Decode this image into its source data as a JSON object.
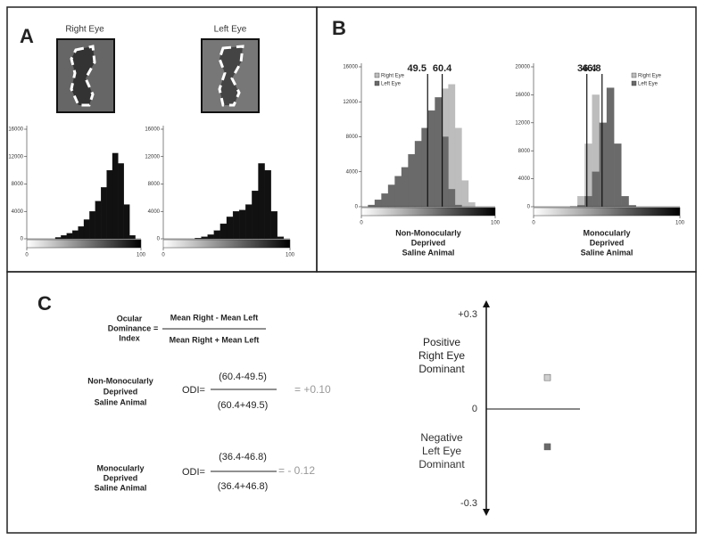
{
  "panel_a": {
    "label": "A",
    "images": [
      "Right Eye",
      "Left Eye"
    ],
    "charts": [
      {
        "type": "histogram",
        "color": "#111",
        "bins": [
          0,
          5,
          10,
          15,
          20,
          25,
          30,
          35,
          40,
          45,
          50,
          55,
          60,
          65,
          70,
          75,
          80,
          85,
          90,
          95,
          100
        ],
        "counts": [
          0,
          0,
          0,
          0,
          0,
          200,
          500,
          800,
          1200,
          1800,
          2800,
          4000,
          5500,
          7500,
          10000,
          12500,
          11000,
          5000,
          500,
          0
        ],
        "xlim": [
          0,
          100
        ],
        "xticks": [
          0,
          100
        ],
        "ylim": [
          0,
          16000
        ],
        "yticks": [
          0,
          4000,
          8000,
          12000,
          16000
        ]
      },
      {
        "type": "histogram",
        "color": "#111",
        "bins": [
          0,
          5,
          10,
          15,
          20,
          25,
          30,
          35,
          40,
          45,
          50,
          55,
          60,
          65,
          70,
          75,
          80,
          85,
          90,
          95,
          100
        ],
        "counts": [
          0,
          0,
          0,
          0,
          0,
          100,
          300,
          600,
          1200,
          2200,
          3200,
          4000,
          4200,
          5000,
          7000,
          11000,
          10000,
          4000,
          300,
          0
        ],
        "xlim": [
          0,
          100
        ],
        "xticks": [
          0,
          100
        ],
        "ylim": [
          0,
          16000
        ],
        "yticks": [
          0,
          4000,
          8000,
          12000,
          16000
        ]
      }
    ]
  },
  "panel_b": {
    "label": "B",
    "charts": [
      {
        "type": "histogram",
        "bins": [
          0,
          5,
          10,
          15,
          20,
          25,
          30,
          35,
          40,
          45,
          50,
          55,
          60,
          65,
          70,
          75,
          80,
          85,
          90,
          95,
          100
        ],
        "series": [
          {
            "name": "Right Eye",
            "color": "#bdbdbd",
            "mean": 60.4,
            "values": [
              0,
              0,
              0,
              0,
              100,
              300,
              700,
              1500,
              2500,
              4000,
              6500,
              10000,
              13500,
              14000,
              9000,
              3000,
              500,
              0,
              0,
              0
            ]
          },
          {
            "name": "Left Eye",
            "color": "#6a6a6a",
            "mean": 49.5,
            "values": [
              0,
              200,
              800,
              1500,
              2500,
              3500,
              4500,
              6000,
              7500,
              9000,
              11000,
              12500,
              8000,
              2000,
              200,
              0,
              0,
              0,
              0,
              0
            ]
          }
        ],
        "xlim": [
          0,
          100
        ],
        "xticks": [
          0,
          100
        ],
        "ylim": [
          0,
          16000
        ],
        "yticks": [
          0,
          4000,
          8000,
          12000,
          16000
        ],
        "xlabel": [
          "Non-Monocularly",
          "Deprived",
          "Saline Animal"
        ]
      },
      {
        "type": "histogram",
        "bins": [
          0,
          5,
          10,
          15,
          20,
          25,
          30,
          35,
          40,
          45,
          50,
          55,
          60,
          65,
          70,
          75,
          80,
          85,
          90,
          95,
          100
        ],
        "series": [
          {
            "name": "Right Eye",
            "color": "#bdbdbd",
            "mean": 36.4,
            "values": [
              0,
              0,
              0,
              0,
              0,
              100,
              1500,
              9000,
              16000,
              6000,
              1000,
              200,
              0,
              0,
              0,
              0,
              0,
              0,
              0,
              0
            ]
          },
          {
            "name": "Left Eye",
            "color": "#6a6a6a",
            "mean": 46.8,
            "values": [
              0,
              0,
              0,
              0,
              0,
              0,
              200,
              1500,
              5000,
              12000,
              17000,
              9000,
              1500,
              200,
              0,
              0,
              0,
              0,
              0,
              0
            ]
          }
        ],
        "xlim": [
          0,
          100
        ],
        "xticks": [
          0,
          100
        ],
        "ylim": [
          0,
          20000
        ],
        "yticks": [
          0,
          4000,
          8000,
          12000,
          16000,
          20000
        ],
        "xlabel": [
          "Monocularly",
          "Deprived",
          "Saline Animal"
        ]
      }
    ]
  },
  "panel_c": {
    "label": "C",
    "formula": {
      "name": [
        "Ocular",
        "Dominance",
        "Index"
      ],
      "equals": "=",
      "numerator": "Mean Right - Mean Left",
      "denominator": "Mean Right + Mean Left"
    },
    "cases": [
      {
        "name": [
          "Non-Monocularly",
          "Deprived",
          "Saline Animal"
        ],
        "odi": "ODI=",
        "numerator": "(60.4-49.5)",
        "denominator": "(60.4+49.5)",
        "result": "=  +0.10"
      },
      {
        "name": [
          "Monocularly",
          "Deprived",
          "Saline Animal"
        ],
        "odi": "ODI=",
        "numerator": "(36.4-46.8)",
        "denominator": "(36.4+46.8)",
        "result": "= - 0.12"
      }
    ],
    "scatter": {
      "type": "scatter",
      "ylim": [
        -0.3,
        0.3
      ],
      "yticks": [
        {
          "value": 0.3,
          "label": "+0.3"
        },
        0,
        {
          "value": -0.3,
          "label": "-0.3"
        }
      ],
      "series": [
        {
          "color": "#cfcfcf",
          "values": [
            0.1
          ]
        },
        {
          "color": "#6a6a6a",
          "values": [
            -0.12
          ]
        }
      ],
      "notes": [
        [
          "Positive",
          "Right Eye",
          "Dominant"
        ],
        [
          "Negative",
          "Left Eye",
          "Dominant"
        ]
      ]
    }
  }
}
